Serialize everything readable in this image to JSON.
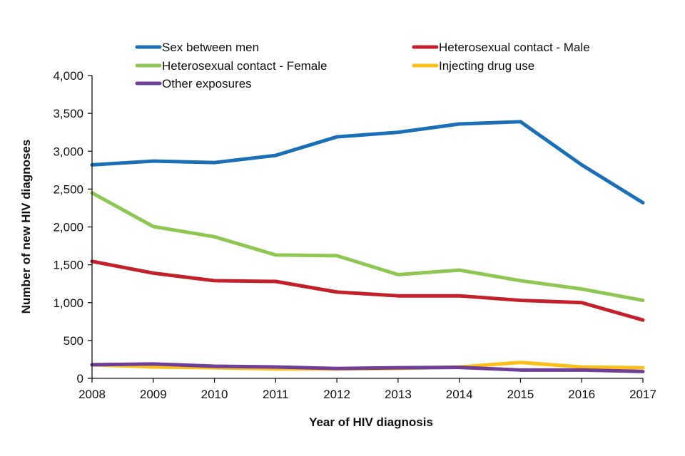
{
  "chart_data": {
    "type": "line",
    "title": "",
    "xlabel": "Year of HIV diagnosis",
    "ylabel": "Number of new HIV diagnoses",
    "x": [
      2008,
      2009,
      2010,
      2011,
      2012,
      2013,
      2014,
      2015,
      2016,
      2017
    ],
    "x_tick_labels": [
      "2008",
      "2009",
      "2010",
      "2011",
      "2012",
      "2013",
      "2014",
      "2015",
      "2016",
      "2017"
    ],
    "ylim": [
      0,
      4000
    ],
    "y_ticks": [
      0,
      500,
      1000,
      1500,
      2000,
      2500,
      3000,
      3500,
      4000
    ],
    "y_tick_labels": [
      "0",
      "500",
      "1,000",
      "1,500",
      "2,000",
      "2,500",
      "3,000",
      "3,500",
      "4,000"
    ],
    "grid": false,
    "legend_position": "top",
    "series": [
      {
        "name": "Sex between men",
        "color": "#1a70b8",
        "values": [
          2820,
          2870,
          2850,
          2945,
          3190,
          3250,
          3360,
          3390,
          2820,
          2320
        ]
      },
      {
        "name": "Heterosexual contact - Male",
        "color": "#c4202a",
        "values": [
          1545,
          1390,
          1290,
          1280,
          1140,
          1090,
          1090,
          1030,
          1000,
          770
        ]
      },
      {
        "name": "Heterosexual contact - Female",
        "color": "#8ec853",
        "values": [
          2450,
          2005,
          1870,
          1630,
          1620,
          1370,
          1430,
          1290,
          1180,
          1030
        ]
      },
      {
        "name": "Injecting drug use",
        "color": "#fbbf18",
        "values": [
          180,
          150,
          140,
          125,
          125,
          130,
          150,
          210,
          150,
          140
        ]
      },
      {
        "name": "Other exposures",
        "color": "#6e3e98",
        "values": [
          180,
          190,
          160,
          150,
          130,
          140,
          145,
          110,
          110,
          90
        ]
      }
    ]
  }
}
